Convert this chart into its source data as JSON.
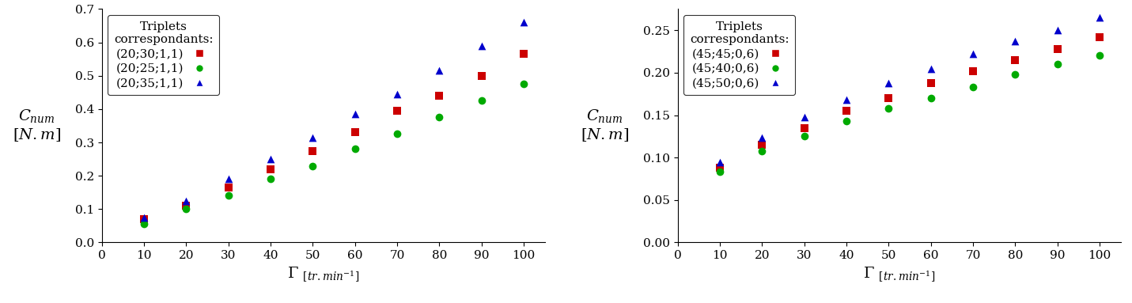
{
  "x": [
    10,
    20,
    30,
    40,
    50,
    60,
    70,
    80,
    90,
    100
  ],
  "left_red": [
    0.07,
    0.11,
    0.165,
    0.22,
    0.275,
    0.33,
    0.395,
    0.44,
    0.5,
    0.565
  ],
  "left_green": [
    0.055,
    0.1,
    0.14,
    0.19,
    0.23,
    0.28,
    0.325,
    0.375,
    0.425,
    0.475
  ],
  "left_blue": [
    0.075,
    0.125,
    0.19,
    0.25,
    0.315,
    0.385,
    0.445,
    0.515,
    0.59,
    0.66
  ],
  "right_red": [
    0.088,
    0.115,
    0.135,
    0.155,
    0.17,
    0.188,
    0.202,
    0.215,
    0.228,
    0.242
  ],
  "right_green": [
    0.083,
    0.108,
    0.125,
    0.143,
    0.158,
    0.17,
    0.183,
    0.198,
    0.21,
    0.22
  ],
  "right_blue": [
    0.095,
    0.123,
    0.148,
    0.168,
    0.188,
    0.205,
    0.222,
    0.237,
    0.25,
    0.265
  ],
  "left_legend_title": "Triplets\ncorrespondants:",
  "left_legend_labels": [
    "(20;30;1,1)",
    "(20;25;1,1)",
    "(20;35;1,1)"
  ],
  "right_legend_title": "Triplets\ncorrespondants:",
  "right_legend_labels": [
    "(45;45;0,6)",
    "(45;40;0,6)",
    "(45;50;0,6)"
  ],
  "left_ylim": [
    0,
    0.7
  ],
  "left_yticks": [
    0,
    0.1,
    0.2,
    0.3,
    0.4,
    0.5,
    0.6,
    0.7
  ],
  "right_ylim": [
    0,
    0.275
  ],
  "right_yticks": [
    0,
    0.05,
    0.1,
    0.15,
    0.2,
    0.25
  ],
  "xlim": [
    0,
    105
  ],
  "xticks": [
    0,
    10,
    20,
    30,
    40,
    50,
    60,
    70,
    80,
    90,
    100
  ],
  "red_color": "#cc0000",
  "green_color": "#00aa00",
  "blue_color": "#0000cc",
  "marker_square": "s",
  "marker_circle": "o",
  "marker_triangle": "^",
  "marker_size": 7,
  "fontsize_labels": 14,
  "fontsize_ticks": 11,
  "fontsize_legend": 11
}
